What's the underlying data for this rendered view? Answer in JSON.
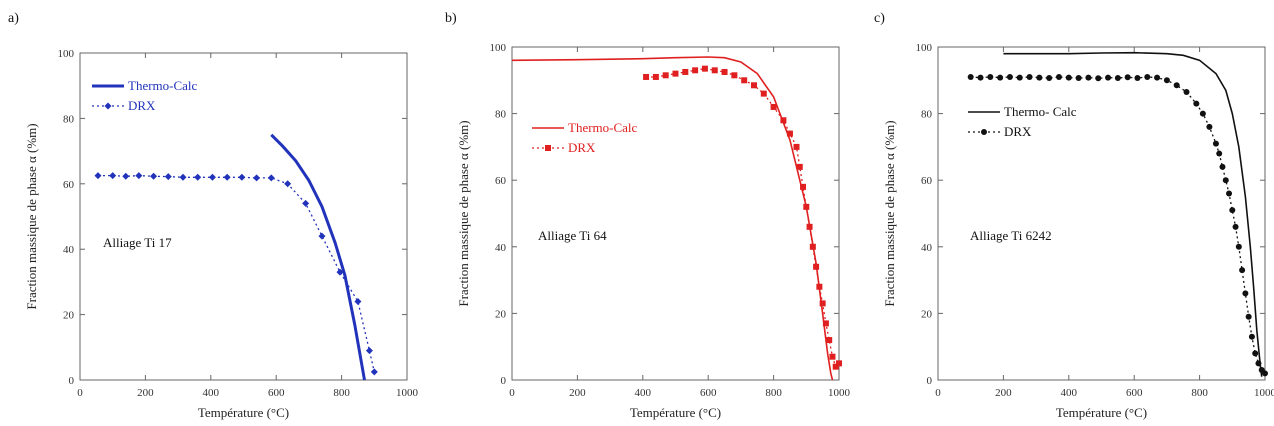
{
  "chart_data": [
    {
      "panel_label": "a)",
      "type": "line",
      "xlabel": "Température (°C)",
      "ylabel": "Fraction massique de phase α (%m)",
      "xlim": [
        0,
        1000
      ],
      "ylim": [
        0,
        100
      ],
      "x_ticks": [
        0,
        200,
        400,
        600,
        800,
        1000
      ],
      "y_ticks": [
        0,
        20,
        40,
        60,
        80,
        100
      ],
      "annotation": "Alliage Ti 17",
      "color": "#2233bb",
      "legend_position": "top-left",
      "series": [
        {
          "name": "Thermo-Calc",
          "style": "solid",
          "x": [
            585,
            620,
            660,
            700,
            740,
            780,
            810,
            840,
            870
          ],
          "y": [
            75,
            71.5,
            67,
            61,
            53,
            42,
            32,
            17,
            0
          ]
        },
        {
          "name": "DRX",
          "style": "dotted-diamond",
          "x": [
            55,
            100,
            140,
            180,
            225,
            270,
            315,
            360,
            405,
            450,
            495,
            540,
            585,
            635,
            690,
            740,
            795,
            850,
            885,
            900
          ],
          "y": [
            62.5,
            62.5,
            62.3,
            62.5,
            62.3,
            62.2,
            62,
            62,
            62,
            62,
            62,
            61.8,
            61.8,
            60,
            54,
            44,
            33,
            24,
            9,
            2.5
          ]
        }
      ]
    },
    {
      "panel_label": "b)",
      "type": "line",
      "xlabel": "Température (°C)",
      "ylabel": "Fraction massique de phase α (%m)",
      "xlim": [
        0,
        1000
      ],
      "ylim": [
        0,
        100
      ],
      "x_ticks": [
        0,
        200,
        400,
        600,
        800,
        1000
      ],
      "y_ticks": [
        0,
        20,
        40,
        60,
        80,
        100
      ],
      "annotation": "Alliage Ti 64",
      "color": "#e02020",
      "legend_position": "middle-left",
      "series": [
        {
          "name": "Thermo-Calc",
          "style": "solid",
          "x": [
            0,
            200,
            400,
            500,
            600,
            650,
            700,
            750,
            800,
            850,
            900,
            930,
            950,
            965,
            975,
            980
          ],
          "y": [
            96,
            96.2,
            96.5,
            96.8,
            97,
            96.8,
            95.5,
            92,
            85,
            72,
            52,
            35,
            20,
            8,
            2,
            0
          ]
        },
        {
          "name": "DRX",
          "style": "dotted-square",
          "x": [
            410,
            440,
            470,
            500,
            530,
            560,
            590,
            620,
            650,
            680,
            710,
            740,
            770,
            800,
            830,
            850,
            870,
            880,
            890,
            900,
            910,
            920,
            930,
            940,
            950,
            960,
            970,
            980,
            990,
            1000
          ],
          "y": [
            91,
            91,
            91.5,
            92,
            92.5,
            93,
            93.5,
            93,
            92.5,
            91.5,
            90,
            88.5,
            86,
            82,
            78,
            74,
            70,
            64,
            58,
            52,
            46,
            40,
            34,
            28,
            23,
            17,
            12,
            7,
            4,
            5
          ]
        }
      ]
    },
    {
      "panel_label": "c)",
      "type": "line",
      "xlabel": "Température (°C)",
      "ylabel": "Fraction massique de phase α (%m)",
      "xlim": [
        0,
        1000
      ],
      "ylim": [
        0,
        100
      ],
      "x_ticks": [
        0,
        200,
        400,
        600,
        800,
        1000
      ],
      "y_ticks": [
        0,
        20,
        40,
        60,
        80,
        100
      ],
      "annotation": "Alliage Ti 6242",
      "color": "#111111",
      "legend_position": "upper-left",
      "series": [
        {
          "name": "Thermo- Calc",
          "style": "solid",
          "x": [
            200,
            400,
            500,
            600,
            700,
            750,
            800,
            850,
            880,
            900,
            920,
            940,
            955,
            965,
            975,
            985,
            990
          ],
          "y": [
            98,
            98,
            98.2,
            98.3,
            98,
            97.5,
            96,
            92,
            87,
            80,
            70,
            55,
            40,
            28,
            15,
            5,
            1
          ]
        },
        {
          "name": "DRX",
          "style": "dotted-circle",
          "x": [
            100,
            130,
            160,
            190,
            220,
            250,
            280,
            310,
            340,
            370,
            400,
            430,
            460,
            490,
            520,
            550,
            580,
            610,
            640,
            670,
            700,
            730,
            760,
            790,
            810,
            830,
            850,
            860,
            870,
            880,
            890,
            900,
            910,
            920,
            930,
            940,
            950,
            960,
            970,
            980,
            990,
            1000
          ],
          "y": [
            91,
            90.8,
            91,
            90.8,
            91,
            90.8,
            91,
            90.8,
            90.7,
            91,
            90.8,
            90.7,
            90.8,
            90.6,
            90.8,
            90.7,
            90.9,
            90.7,
            91,
            90.8,
            90,
            88.5,
            86.5,
            83,
            80,
            76,
            71,
            68,
            64,
            60,
            56,
            51,
            46,
            40,
            33,
            26,
            19,
            13,
            8,
            5,
            3,
            2
          ]
        }
      ]
    }
  ]
}
